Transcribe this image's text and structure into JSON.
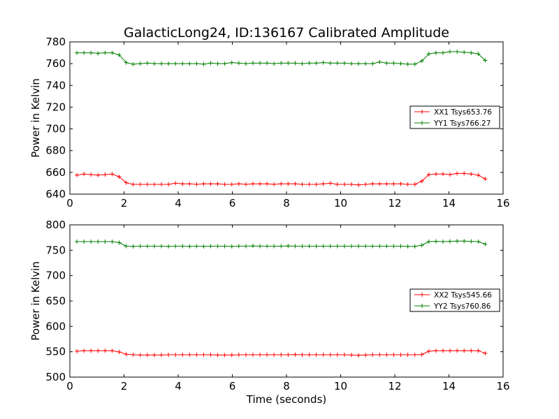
{
  "title": "GalacticLong24, ID:136167 Calibrated Amplitude",
  "colors": {
    "xx": "#ff0000",
    "yy": "#008000",
    "axis": "#000000"
  },
  "chart_data": [
    {
      "type": "line",
      "title": "GalacticLong24, ID:136167 Calibrated Amplitude",
      "xlabel": "",
      "ylabel": "Power in Kelvin",
      "xlim": [
        0,
        16
      ],
      "ylim": [
        640,
        780
      ],
      "xticks": [
        0,
        2,
        4,
        6,
        8,
        10,
        12,
        14,
        16
      ],
      "yticks": [
        640,
        660,
        680,
        700,
        720,
        740,
        760,
        780
      ],
      "legend_position": "right",
      "x": [
        0.26,
        0.52,
        0.78,
        1.04,
        1.3,
        1.56,
        1.82,
        2.08,
        2.34,
        2.6,
        2.86,
        3.12,
        3.38,
        3.64,
        3.9,
        4.16,
        4.42,
        4.68,
        4.94,
        5.2,
        5.46,
        5.72,
        5.98,
        6.24,
        6.5,
        6.76,
        7.02,
        7.28,
        7.54,
        7.8,
        8.06,
        8.32,
        8.58,
        8.84,
        9.1,
        9.36,
        9.62,
        9.88,
        10.14,
        10.4,
        10.66,
        10.92,
        11.18,
        11.44,
        11.7,
        11.96,
        12.22,
        12.48,
        12.74,
        13.0,
        13.26,
        13.52,
        13.78,
        14.04,
        14.3,
        14.56,
        14.82,
        15.08,
        15.34
      ],
      "series": [
        {
          "name": "XX1 Tsys653.76",
          "color": "#ff0000",
          "values": [
            657.5,
            658.5,
            658,
            657.5,
            658,
            658.5,
            656,
            650.5,
            649,
            649,
            649,
            649,
            649,
            649,
            650,
            649.5,
            649.5,
            649,
            649.5,
            649.5,
            649.5,
            649,
            649,
            649.5,
            649,
            649.5,
            649.5,
            649.5,
            649,
            649.5,
            649.5,
            649.5,
            649,
            649,
            649,
            649.5,
            650,
            649,
            649,
            649,
            648.5,
            649,
            649.5,
            649.5,
            649.5,
            649.5,
            649.5,
            649,
            649,
            652,
            658,
            658.5,
            658.5,
            658,
            659,
            659,
            658.5,
            657.5,
            654
          ]
        },
        {
          "name": "YY1 Tsys766.27",
          "color": "#008000",
          "values": [
            770,
            770,
            770,
            769.5,
            770,
            770,
            768,
            761,
            759.5,
            760,
            760.5,
            760,
            760,
            760,
            760,
            760,
            760,
            760,
            759.5,
            760.5,
            760,
            760,
            761,
            760.5,
            760,
            760.5,
            760.5,
            760.5,
            760,
            760.5,
            760.5,
            760.5,
            760,
            760.5,
            760.5,
            761,
            760.5,
            760.5,
            760.5,
            760,
            760,
            760,
            760,
            761.5,
            760.5,
            760.5,
            760,
            759.5,
            759.5,
            762.5,
            769,
            770,
            770,
            771,
            771,
            770.5,
            770,
            769,
            763
          ]
        }
      ]
    },
    {
      "type": "line",
      "title": "",
      "xlabel": "Time (seconds)",
      "ylabel": "Power in Kelvin",
      "xlim": [
        0,
        16
      ],
      "ylim": [
        500,
        800
      ],
      "xticks": [
        0,
        2,
        4,
        6,
        8,
        10,
        12,
        14,
        16
      ],
      "yticks": [
        500,
        550,
        600,
        650,
        700,
        750,
        800
      ],
      "legend_position": "right",
      "x": [
        0.26,
        0.52,
        0.78,
        1.04,
        1.3,
        1.56,
        1.82,
        2.08,
        2.34,
        2.6,
        2.86,
        3.12,
        3.38,
        3.64,
        3.9,
        4.16,
        4.42,
        4.68,
        4.94,
        5.2,
        5.46,
        5.72,
        5.98,
        6.24,
        6.5,
        6.76,
        7.02,
        7.28,
        7.54,
        7.8,
        8.06,
        8.32,
        8.58,
        8.84,
        9.1,
        9.36,
        9.62,
        9.88,
        10.14,
        10.4,
        10.66,
        10.92,
        11.18,
        11.44,
        11.7,
        11.96,
        12.22,
        12.48,
        12.74,
        13.0,
        13.26,
        13.52,
        13.78,
        14.04,
        14.3,
        14.56,
        14.82,
        15.08,
        15.34
      ],
      "series": [
        {
          "name": "XX2 Tsys545.66",
          "color": "#ff0000",
          "values": [
            551,
            552,
            552,
            552,
            552,
            552,
            549.5,
            545,
            544,
            543.5,
            543.5,
            543.5,
            543.5,
            544,
            544,
            544,
            544,
            544,
            544,
            544,
            543.5,
            543.5,
            543.5,
            544,
            544,
            544,
            544,
            544,
            544,
            544,
            544,
            544.5,
            544,
            544,
            544,
            544,
            544,
            544,
            544,
            543.5,
            543,
            543.5,
            544,
            544,
            544,
            544,
            544,
            544,
            544,
            544.5,
            551,
            552,
            552,
            552,
            552,
            552,
            552,
            552,
            547
          ]
        },
        {
          "name": "YY2 Tsys760.86",
          "color": "#008000",
          "values": [
            767,
            767,
            767,
            767,
            767,
            767,
            765,
            758,
            757.5,
            758,
            758,
            758,
            758,
            757.5,
            758,
            758,
            757.5,
            758,
            757.5,
            758,
            758,
            758,
            757.5,
            758,
            758,
            758.5,
            758,
            758,
            758,
            758,
            758.5,
            758,
            758,
            758,
            758,
            758,
            758,
            758,
            758,
            758,
            758,
            758,
            758,
            758,
            758,
            758,
            758,
            757.5,
            757.5,
            760,
            767,
            767.5,
            767,
            767.5,
            768,
            768,
            767.5,
            767,
            762
          ]
        }
      ]
    }
  ]
}
